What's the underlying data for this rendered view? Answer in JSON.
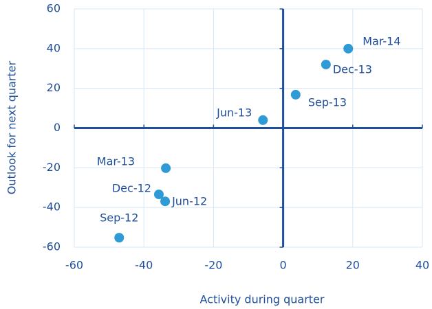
{
  "chart_data": {
    "type": "scatter",
    "x_label": "Activity during quarter",
    "y_label": "Outlook for next quarter",
    "labels": [
      "Mar-14",
      "Dec-13",
      "Sep-13",
      "Jun-13",
      "Mar-13",
      "Dec-12",
      "Jun-12",
      "Sep-12"
    ],
    "x": [
      18.7,
      12.3,
      3.6,
      -5.8,
      -33.7,
      -35.7,
      -33.9,
      -47.1
    ],
    "y": [
      40,
      32,
      16.8,
      4,
      -20.2,
      -33.4,
      -36.9,
      -55.2
    ],
    "color": "#2e9ad6",
    "xlim": [
      -60,
      40
    ],
    "xticks": [
      -60,
      -40,
      -20,
      0,
      20,
      40
    ],
    "ylim": [
      -60,
      60
    ],
    "yticks": [
      -60,
      -40,
      -20,
      0,
      20,
      40,
      60
    ],
    "grid": true
  }
}
